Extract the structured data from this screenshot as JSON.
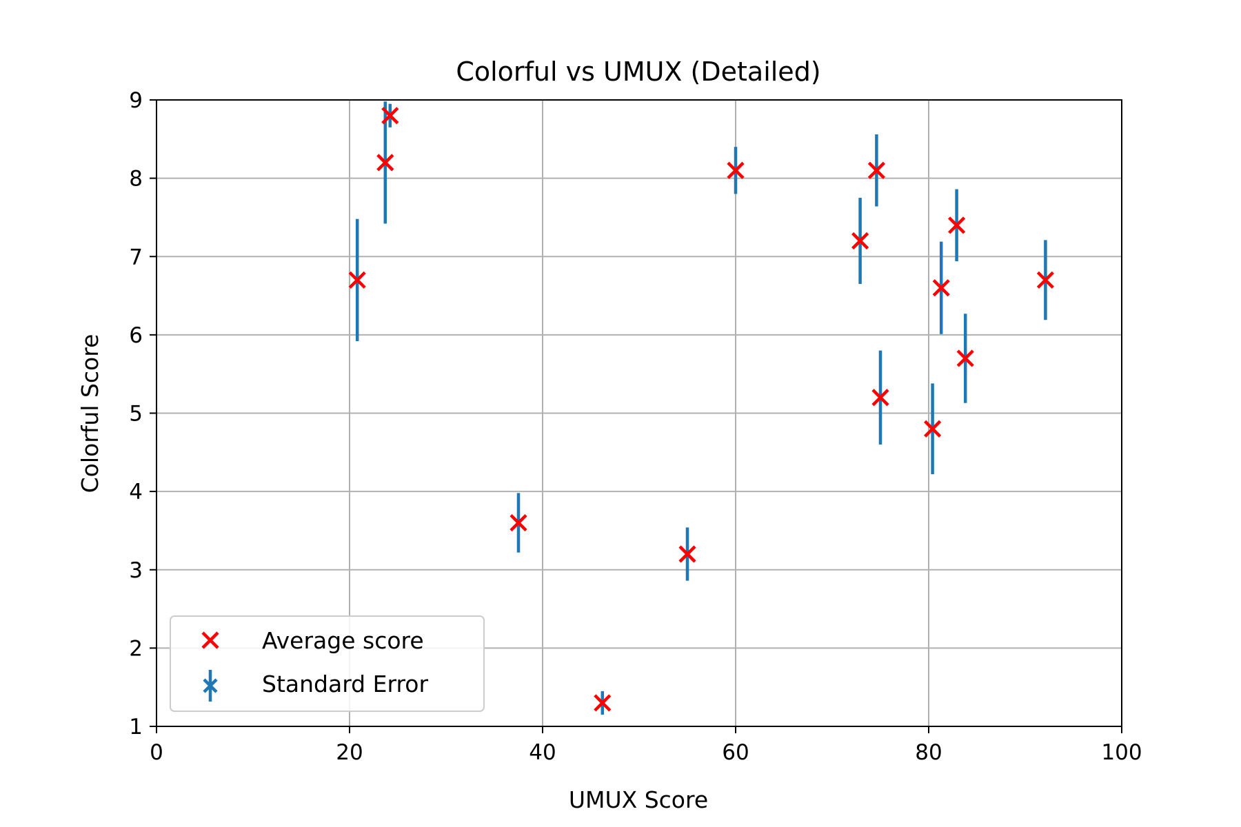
{
  "chart_data": {
    "type": "scatter",
    "title": "Colorful vs UMUX (Detailed)",
    "xlabel": "UMUX Score",
    "ylabel": "Colorful Score",
    "xlim": [
      0,
      100
    ],
    "ylim": [
      1,
      9
    ],
    "xticks": [
      0,
      20,
      40,
      60,
      80,
      100
    ],
    "yticks": [
      1,
      2,
      3,
      4,
      5,
      6,
      7,
      8,
      9
    ],
    "grid": true,
    "legend_position": "lower-left",
    "series": [
      {
        "name": "Average score",
        "marker": "x",
        "color": "#ff0000",
        "points": [
          {
            "x": 20.8,
            "y": 6.7
          },
          {
            "x": 23.7,
            "y": 8.2
          },
          {
            "x": 24.2,
            "y": 8.8
          },
          {
            "x": 37.5,
            "y": 3.6
          },
          {
            "x": 46.2,
            "y": 1.3
          },
          {
            "x": 55.0,
            "y": 3.2
          },
          {
            "x": 60.0,
            "y": 8.1
          },
          {
            "x": 72.9,
            "y": 7.2
          },
          {
            "x": 74.6,
            "y": 8.1
          },
          {
            "x": 75.0,
            "y": 5.2
          },
          {
            "x": 80.4,
            "y": 4.8
          },
          {
            "x": 81.3,
            "y": 6.6
          },
          {
            "x": 82.9,
            "y": 7.4
          },
          {
            "x": 83.8,
            "y": 5.7
          },
          {
            "x": 92.1,
            "y": 6.7
          }
        ]
      },
      {
        "name": "Standard Error",
        "marker": "errorbar",
        "color": "#1f77b4",
        "points": [
          {
            "x": 20.8,
            "y": 6.7,
            "err": 0.78
          },
          {
            "x": 23.7,
            "y": 8.2,
            "err": 0.78
          },
          {
            "x": 24.2,
            "y": 8.8,
            "err": 0.15
          },
          {
            "x": 37.5,
            "y": 3.6,
            "err": 0.38
          },
          {
            "x": 46.2,
            "y": 1.3,
            "err": 0.15
          },
          {
            "x": 55.0,
            "y": 3.2,
            "err": 0.34
          },
          {
            "x": 60.0,
            "y": 8.1,
            "err": 0.3
          },
          {
            "x": 72.9,
            "y": 7.2,
            "err": 0.55
          },
          {
            "x": 74.6,
            "y": 8.1,
            "err": 0.46
          },
          {
            "x": 75.0,
            "y": 5.2,
            "err": 0.6
          },
          {
            "x": 80.4,
            "y": 4.8,
            "err": 0.58
          },
          {
            "x": 81.3,
            "y": 6.6,
            "err": 0.59
          },
          {
            "x": 82.9,
            "y": 7.4,
            "err": 0.46
          },
          {
            "x": 83.8,
            "y": 5.7,
            "err": 0.57
          },
          {
            "x": 92.1,
            "y": 6.7,
            "err": 0.51
          }
        ]
      }
    ]
  }
}
